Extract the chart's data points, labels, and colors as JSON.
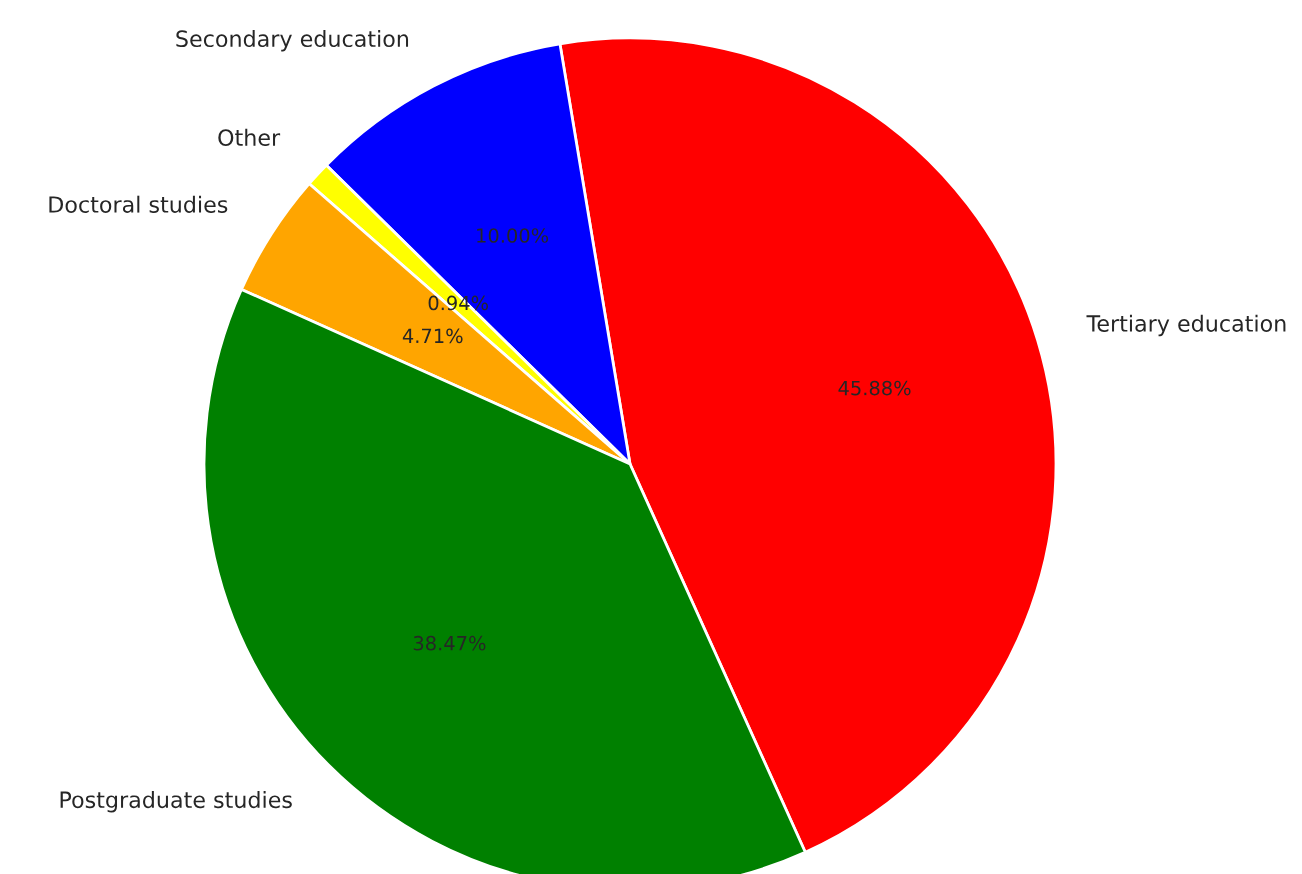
{
  "chart_data": {
    "type": "pie",
    "categories": [
      "Tertiary education",
      "Secondary education",
      "Other",
      "Doctoral studies",
      "Postgraduate studies"
    ],
    "values": [
      45.88,
      10.0,
      0.94,
      4.71,
      38.47
    ],
    "colors": [
      "#ff0000",
      "#0000ff",
      "#ffff00",
      "#ffa500",
      "#008000"
    ],
    "value_labels": [
      "45.88%",
      "10.00%",
      "0.94%",
      "4.71%",
      "38.47%"
    ]
  }
}
